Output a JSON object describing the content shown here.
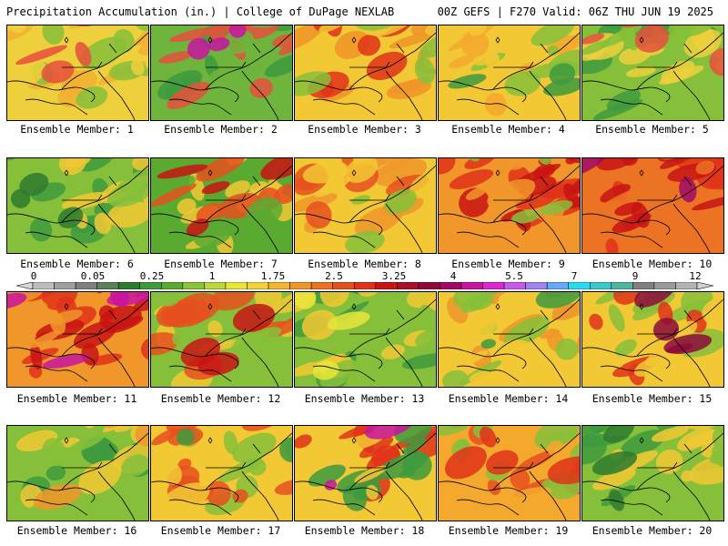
{
  "header": {
    "title": "Precipitation Accumulation (in.) | College of DuPage NEXLAB",
    "run_info": "00Z GEFS | F270 Valid: 06Z THU JUN 19 2025"
  },
  "colorbar": {
    "tick_labels": [
      "0",
      "0.05",
      "0.25",
      "1",
      "1.75",
      "2.5",
      "3.25",
      "4",
      "5.5",
      "7",
      "9",
      "12"
    ],
    "colors": [
      "#d8d8d8",
      "#bdbdbd",
      "#9e9e9e",
      "#7f7f7f",
      "#5e7f5e",
      "#2f7a2f",
      "#3e9a3e",
      "#5aaa32",
      "#8ac43a",
      "#b8d83c",
      "#e6e63c",
      "#f2d23a",
      "#f5b431",
      "#f0962a",
      "#eb7323",
      "#e6501e",
      "#e13219",
      "#c81414",
      "#aa0f28",
      "#8c0a3c",
      "#a00a64",
      "#c814a0",
      "#dc28d2",
      "#c85aeb",
      "#a082f0",
      "#64aaf5",
      "#28dcf0",
      "#3cc8c8",
      "#50b4a0",
      "#808080",
      "#9a9a9a",
      "#b4b4b4",
      "#cecece"
    ]
  },
  "panels": [
    {
      "label": "Ensemble Member: 1",
      "palette": [
        "#eed03c",
        "#f2b030",
        "#86c03a",
        "#e6503c"
      ]
    },
    {
      "label": "Ensemble Member: 2",
      "palette": [
        "#6fb43c",
        "#3e9a3e",
        "#e6503c",
        "#c814a0"
      ]
    },
    {
      "label": "Ensemble Member: 3",
      "palette": [
        "#f2c834",
        "#f09428",
        "#e13219",
        "#86c03a"
      ]
    },
    {
      "label": "Ensemble Member: 4",
      "palette": [
        "#f2c834",
        "#f5a82e",
        "#86c03a",
        "#3e9a3e"
      ]
    },
    {
      "label": "Ensemble Member: 5",
      "palette": [
        "#86c03a",
        "#3e9a3e",
        "#eed03c",
        "#e6503c"
      ]
    },
    {
      "label": "Ensemble Member: 6",
      "palette": [
        "#86c03a",
        "#3e9a3e",
        "#f2c834",
        "#2f7a2f"
      ]
    },
    {
      "label": "Ensemble Member: 7",
      "palette": [
        "#5aaa32",
        "#f2c834",
        "#e6501e",
        "#c81414"
      ]
    },
    {
      "label": "Ensemble Member: 8",
      "palette": [
        "#f2c834",
        "#f0962a",
        "#e6501e",
        "#86c03a"
      ]
    },
    {
      "label": "Ensemble Member: 9",
      "palette": [
        "#f0962a",
        "#e13219",
        "#c81414",
        "#86c03a"
      ]
    },
    {
      "label": "Ensemble Member: 10",
      "palette": [
        "#eb7323",
        "#e13219",
        "#c81414",
        "#a00a64"
      ]
    },
    {
      "label": "Ensemble Member: 11",
      "palette": [
        "#f0962a",
        "#e13219",
        "#c81414",
        "#c814a0"
      ]
    },
    {
      "label": "Ensemble Member: 12",
      "palette": [
        "#86c03a",
        "#f2c834",
        "#e6501e",
        "#c81414"
      ]
    },
    {
      "label": "Ensemble Member: 13",
      "palette": [
        "#86c03a",
        "#3e9a3e",
        "#f2c834",
        "#e6e63c"
      ]
    },
    {
      "label": "Ensemble Member: 14",
      "palette": [
        "#f2c834",
        "#f0962a",
        "#86c03a",
        "#3e9a3e"
      ]
    },
    {
      "label": "Ensemble Member: 15",
      "palette": [
        "#f2c834",
        "#86c03a",
        "#e13219",
        "#8c0a3c"
      ]
    },
    {
      "label": "Ensemble Member: 16",
      "palette": [
        "#86c03a",
        "#3e9a3e",
        "#f2c834",
        "#f0962a"
      ]
    },
    {
      "label": "Ensemble Member: 17",
      "palette": [
        "#f2c834",
        "#86c03a",
        "#e6501e",
        "#3e9a3e"
      ]
    },
    {
      "label": "Ensemble Member: 18",
      "palette": [
        "#f2c834",
        "#e13219",
        "#3e9a3e",
        "#c814a0"
      ]
    },
    {
      "label": "Ensemble Member: 19",
      "palette": [
        "#f5a82e",
        "#e6501e",
        "#86c03a",
        "#e13219"
      ]
    },
    {
      "label": "Ensemble Member: 20",
      "palette": [
        "#86c03a",
        "#3e9a3e",
        "#f2c834",
        "#2f7a2f"
      ]
    }
  ]
}
